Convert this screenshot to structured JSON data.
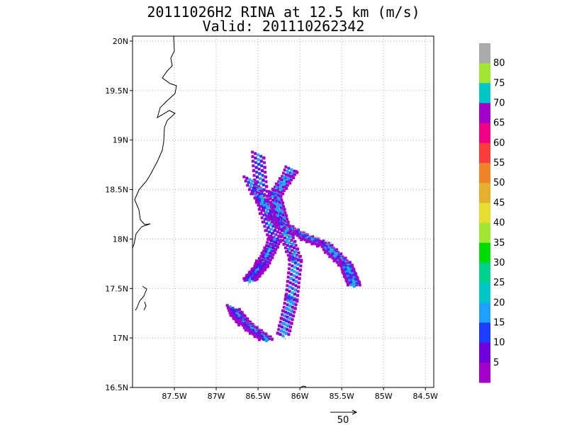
{
  "chart_data": {
    "type": "heatmap",
    "title": "20111026H2 RINA at 12.5 km (m/s)",
    "subtitle": "Valid: 201110262342",
    "x_ticks": [
      "87.5W",
      "87W",
      "86.5W",
      "86W",
      "85.5W",
      "85W",
      "84.5W"
    ],
    "y_ticks": [
      "16.5N",
      "17N",
      "17.5N",
      "18N",
      "18.5N",
      "19N",
      "19.5N",
      "20N"
    ],
    "xlim": [
      -88.0,
      -84.4
    ],
    "ylim": [
      16.5,
      20.05
    ],
    "grid": true,
    "reference_vector_label": "50",
    "colorbar": {
      "labels": [
        "5",
        "10",
        "15",
        "20",
        "25",
        "30",
        "35",
        "40",
        "45",
        "50",
        "55",
        "60",
        "65",
        "70",
        "75",
        "80"
      ],
      "colors": [
        "#a000c8",
        "#6e00dc",
        "#1e3cff",
        "#1ea0ff",
        "#00c8c8",
        "#00d28c",
        "#00dc00",
        "#a0e632",
        "#e6dc32",
        "#e6af2d",
        "#f08228",
        "#fa3c3c",
        "#f00082",
        "#a000c8",
        "#00c8c8",
        "#a0e632",
        "#aaaaaa"
      ]
    },
    "observed_region": {
      "description_units": "degrees (lon, lat)",
      "legs": [
        {
          "name": "",
          "points": [
            [
              -86.5,
              18.85
            ],
            [
              -86.45,
              18.4
            ],
            [
              -86.3,
              18.0
            ],
            [
              -86.45,
              17.75
            ],
            [
              -86.6,
              17.6
            ]
          ]
        },
        {
          "name": "",
          "points": [
            [
              -86.6,
              18.6
            ],
            [
              -86.3,
              18.2
            ],
            [
              -86.0,
              18.05
            ],
            [
              -85.7,
              17.95
            ],
            [
              -85.45,
              17.75
            ],
            [
              -85.35,
              17.55
            ]
          ]
        },
        {
          "name": "",
          "points": [
            [
              -86.1,
              18.7
            ],
            [
              -86.3,
              18.45
            ],
            [
              -86.2,
              18.15
            ],
            [
              -86.05,
              17.8
            ],
            [
              -86.1,
              17.4
            ],
            [
              -86.2,
              17.05
            ]
          ]
        },
        {
          "name": "",
          "points": [
            [
              -86.8,
              17.3
            ],
            [
              -86.65,
              17.15
            ],
            [
              -86.4,
              17.0
            ]
          ]
        }
      ]
    }
  }
}
